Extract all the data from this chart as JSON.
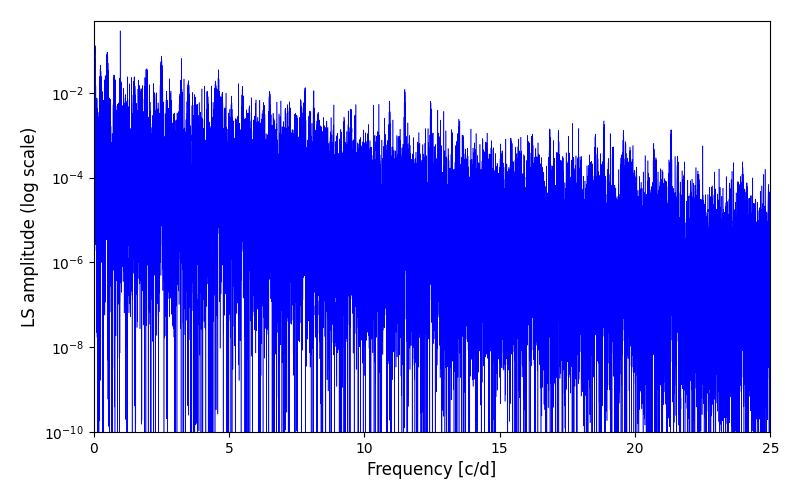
{
  "title": "",
  "xlabel": "Frequency [c/d]",
  "ylabel": "LS amplitude (log scale)",
  "xlim": [
    0,
    25
  ],
  "ylim": [
    1e-10,
    0.5
  ],
  "line_color": "blue",
  "background_color": "#ffffff",
  "figsize": [
    8.0,
    5.0
  ],
  "dpi": 100,
  "freq_max": 25.0,
  "seed": 12345,
  "base_amplitude": 0.001,
  "decay_rate": 0.22,
  "min_val": 1e-12
}
